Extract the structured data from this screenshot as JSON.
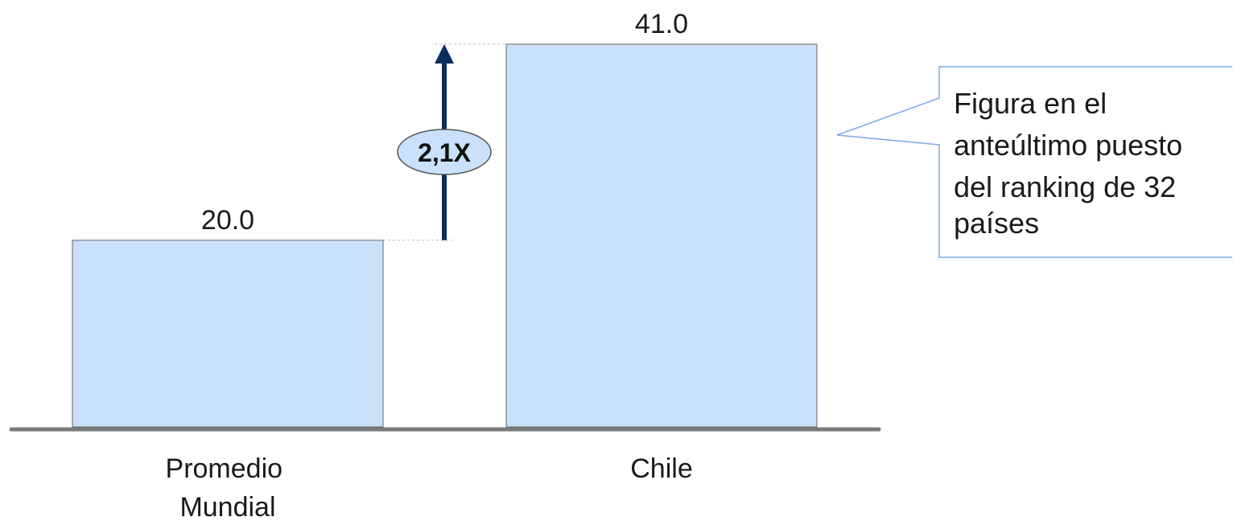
{
  "chart_data": {
    "type": "bar",
    "categories": [
      "Promedio Mundial",
      "Chile"
    ],
    "category_lines": [
      [
        "Promedio",
        "Mundial"
      ],
      [
        "Chile"
      ]
    ],
    "values": [
      20.0,
      41.0
    ],
    "data_labels": [
      "20.0",
      "41.0"
    ],
    "title": "",
    "xlabel": "",
    "ylabel": "",
    "ylim": [
      0,
      41.0
    ],
    "grid": false,
    "bar_color": "#c9e1fa",
    "bar_border_color": "#666666",
    "axis_color": "#7a7a7a",
    "annotations": {
      "ratio_label": "2,1X",
      "ratio_arrow_color": "#0b2d5c",
      "ratio_oval_color": "#c9e1fa",
      "callout_lines": [
        "Figura en el",
        "anteúltimo puesto",
        "del ranking de 32",
        "países"
      ],
      "callout_border_color": "#7fa6ea"
    }
  }
}
